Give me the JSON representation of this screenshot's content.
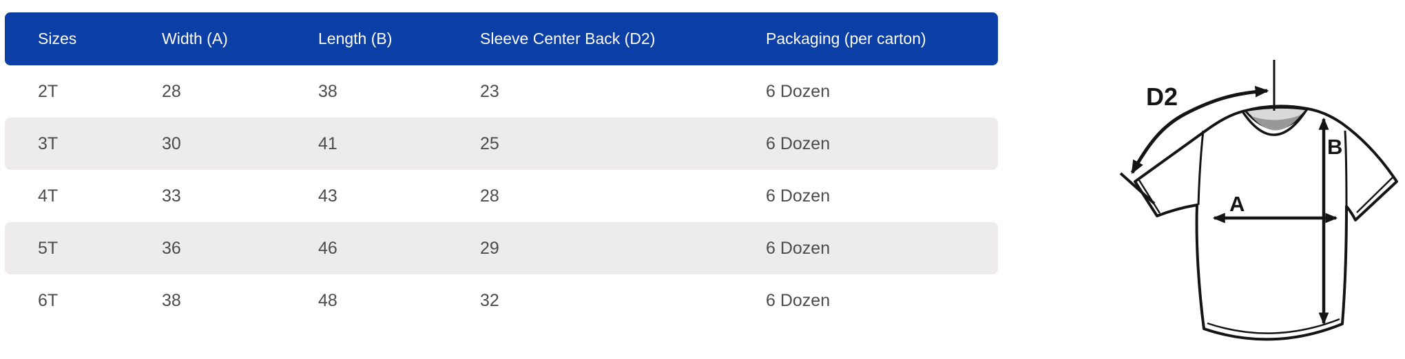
{
  "table": {
    "columns": [
      "Sizes",
      "Width (A)",
      "Length (B)",
      "Sleeve Center Back (D2)",
      "Packaging (per carton)"
    ],
    "rows": [
      [
        "2T",
        "28",
        "38",
        "23",
        "6 Dozen"
      ],
      [
        "3T",
        "30",
        "41",
        "25",
        "6 Dozen"
      ],
      [
        "4T",
        "33",
        "43",
        "28",
        "6 Dozen"
      ],
      [
        "5T",
        "36",
        "46",
        "29",
        "6 Dozen"
      ],
      [
        "6T",
        "38",
        "48",
        "32",
        "6 Dozen"
      ]
    ]
  },
  "diagram": {
    "labels": {
      "d2": "D2",
      "b": "B",
      "a": "A"
    }
  },
  "colors": {
    "header_bg": "#0b3fa5",
    "header_text": "#ffffff",
    "row_alt_bg": "#edebeb",
    "body_text": "#4b4b4b",
    "diagram_stroke": "#141414"
  }
}
